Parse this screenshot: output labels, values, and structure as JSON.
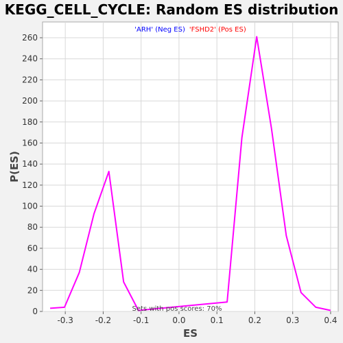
{
  "chart_data": {
    "type": "line",
    "title": "KEGG_CELL_CYCLE: Random ES distribution",
    "xlabel": "ES",
    "ylabel": "P(ES)",
    "xlim": [
      -0.36,
      0.42
    ],
    "ylim": [
      0,
      275
    ],
    "x_ticks": [
      -0.3,
      -0.2,
      -0.1,
      0.0,
      0.1,
      0.2,
      0.3,
      0.4
    ],
    "x_tick_labels": [
      "-0.3",
      "-0.2",
      "-0.1",
      "0.0",
      "0.1",
      "0.2",
      "0.3",
      "0.4"
    ],
    "y_ticks": [
      0,
      20,
      40,
      60,
      80,
      100,
      120,
      140,
      160,
      180,
      200,
      220,
      240,
      260
    ],
    "y_tick_labels": [
      "0",
      "20",
      "40",
      "60",
      "80",
      "100",
      "120",
      "140",
      "160",
      "180",
      "200",
      "220",
      "240",
      "260"
    ],
    "grid": true,
    "legend": [
      {
        "label": "'ARH' (Neg ES)",
        "color": "#0000ff"
      },
      {
        "label": "'FSHD2' (Pos ES)",
        "color": "#ff0000"
      }
    ],
    "annotation": "Sets with pos scores: 70%",
    "series": [
      {
        "color": "#ff00ff",
        "x": [
          -0.34,
          -0.302,
          -0.263,
          -0.224,
          -0.185,
          -0.146,
          -0.107,
          0.127,
          0.166,
          0.205,
          0.244,
          0.283,
          0.322,
          0.361,
          0.4
        ],
        "y": [
          3,
          4,
          37,
          93,
          133,
          28,
          1,
          9,
          165,
          261,
          174,
          72,
          18,
          4,
          1
        ]
      }
    ]
  }
}
